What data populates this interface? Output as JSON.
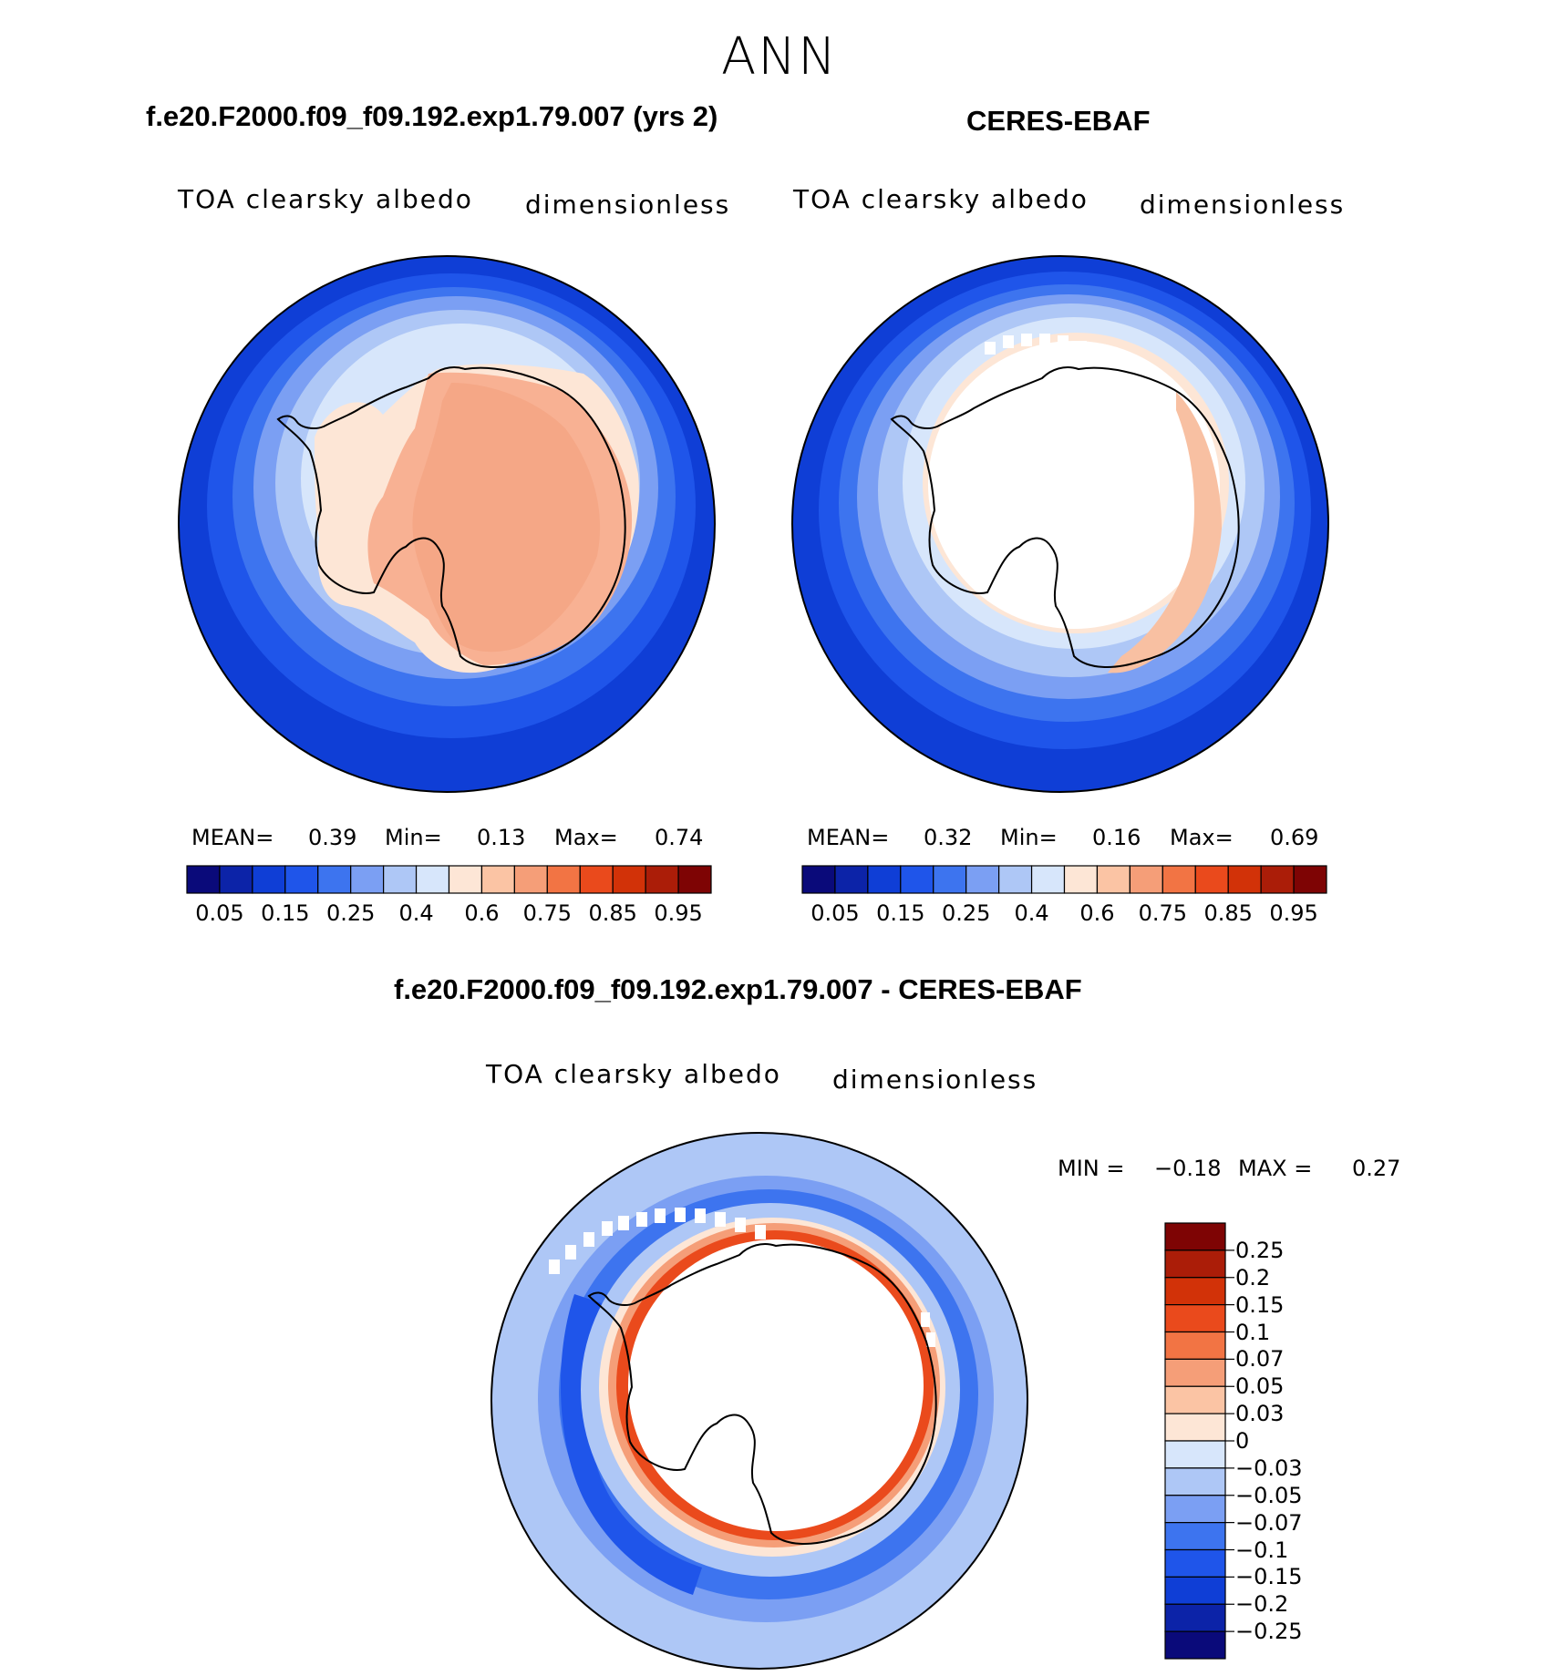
{
  "figure_title": "ANN",
  "panels": {
    "model": {
      "title": "f.e20.F2000.f09_f09.192.exp1.79.007 (yrs 2)",
      "variable": "TOA clearsky albedo",
      "units": "dimensionless",
      "mean_label": "MEAN=",
      "mean": "0.39",
      "min_label": "Min=",
      "min": "0.13",
      "max_label": "Max=",
      "max": "0.74"
    },
    "obs": {
      "title": "CERES-EBAF",
      "variable": "TOA clearsky albedo",
      "units": "dimensionless",
      "mean_label": "MEAN=",
      "mean": "0.32",
      "min_label": "Min=",
      "min": "0.16",
      "max_label": "Max=",
      "max": "0.69"
    },
    "diff": {
      "title": "f.e20.F2000.f09_f09.192.exp1.79.007 - CERES-EBAF",
      "variable": "TOA clearsky albedo",
      "units": "dimensionless",
      "min_label": "MIN =",
      "min": "−0.18",
      "max_label": "MAX =",
      "max": "0.27"
    }
  },
  "abs_colorbar": {
    "colors": [
      "#0a0a7a",
      "#0c23a8",
      "#0f3ed6",
      "#1f55ea",
      "#3d74ef",
      "#7b9ff3",
      "#aec7f6",
      "#d7e6fb",
      "#fde6d6",
      "#fbc4a4",
      "#f59e78",
      "#f27444",
      "#ea4a1c",
      "#d23208",
      "#ab1d08",
      "#7e0404"
    ],
    "tick_labels": [
      "0.05",
      "0.15",
      "0.25",
      "0.4",
      "0.6",
      "0.75",
      "0.85",
      "0.95"
    ]
  },
  "diff_colorbar": {
    "colors_top_to_bottom": [
      "#7e0404",
      "#ab1d08",
      "#d23208",
      "#ea4a1c",
      "#f27444",
      "#f59e78",
      "#fbc4a4",
      "#fde6d6",
      "#d7e6fb",
      "#aec7f6",
      "#7b9ff3",
      "#3d74ef",
      "#1f55ea",
      "#0f3ed6",
      "#0c23a8",
      "#0a0a7a"
    ],
    "tick_labels": [
      "0.25",
      "0.2",
      "0.15",
      "0.1",
      "0.07",
      "0.05",
      "0.03",
      "0",
      "−0.03",
      "−0.05",
      "−0.07",
      "−0.1",
      "−0.15",
      "−0.2",
      "−0.25"
    ]
  }
}
